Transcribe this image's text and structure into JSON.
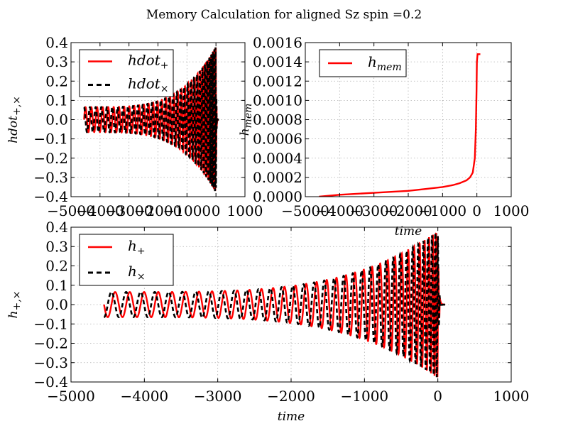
{
  "figure": {
    "suptitle": "Memory Calculation for aligned Sz spin =0.2"
  },
  "chart_data": [
    {
      "id": "hdot",
      "type": "line",
      "xlabel": "",
      "ylabel_base": "hdot",
      "ylabel_sub": "+,×",
      "xlim": [
        -5000,
        1000
      ],
      "ylim": [
        -0.4,
        0.4
      ],
      "xticks": [
        -5000,
        -4000,
        -3000,
        -2000,
        -1000,
        0,
        1000
      ],
      "xtick_labels": [
        "−5000",
        "−4000",
        "−3000",
        "−2000",
        "−1000",
        "0",
        "1000"
      ],
      "yticks": [
        -0.4,
        -0.3,
        -0.2,
        -0.1,
        0.0,
        0.1,
        0.2,
        0.3,
        0.4
      ],
      "ytick_labels": [
        "−0.4",
        "−0.3",
        "−0.2",
        "−0.1",
        "0.0",
        "0.1",
        "0.2",
        "0.3",
        "0.4"
      ],
      "grid": true,
      "legend_position": "upper-left",
      "series": [
        {
          "name_base": "hdot",
          "name_sub": "+",
          "color": "#ff0000",
          "style": "solid",
          "t_start": -4550,
          "t_end": 100,
          "amp_start": 0.065,
          "amp_peak": 0.38,
          "cycles": 36,
          "phase": 0.0
        },
        {
          "name_base": "hdot",
          "name_sub": "×",
          "color": "#000000",
          "style": "dashed",
          "t_start": -4550,
          "t_end": 100,
          "amp_start": 0.065,
          "amp_peak": 0.38,
          "cycles": 36,
          "phase": 1.5708
        }
      ]
    },
    {
      "id": "hmem",
      "type": "line",
      "xlabel": "time",
      "ylabel_base": "h",
      "ylabel_sub": "mem",
      "xlim": [
        -5000,
        1000
      ],
      "ylim": [
        0.0,
        0.0016
      ],
      "xticks": [
        -5000,
        -4000,
        -3000,
        -2000,
        -1000,
        0,
        1000
      ],
      "xtick_labels": [
        "−5000",
        "−4000",
        "−3000",
        "−2000",
        "−1000",
        "0",
        "1000"
      ],
      "yticks": [
        0.0,
        0.0002,
        0.0004,
        0.0006,
        0.0008,
        0.001,
        0.0012,
        0.0014,
        0.0016
      ],
      "ytick_labels": [
        "0.0000",
        "0.0002",
        "0.0004",
        "0.0006",
        "0.0008",
        "0.0010",
        "0.0012",
        "0.0014",
        "0.0016"
      ],
      "grid": true,
      "legend_position": "upper-left",
      "series": [
        {
          "name_base": "h",
          "name_sub": "mem",
          "color": "#ff0000",
          "style": "solid",
          "x": [
            -4600,
            -4000,
            -3500,
            -3000,
            -2500,
            -2000,
            -1500,
            -1000,
            -700,
            -500,
            -300,
            -200,
            -120,
            -60,
            -30,
            -10,
            0,
            20,
            60,
            100
          ],
          "y": [
            0.0,
            2e-05,
            3e-05,
            4e-05,
            5e-05,
            6e-05,
            8e-05,
            0.0001,
            0.00012,
            0.00014,
            0.00017,
            0.0002,
            0.00025,
            0.0004,
            0.0007,
            0.0011,
            0.0014,
            0.00148,
            0.00148,
            0.00148
          ]
        }
      ]
    },
    {
      "id": "h",
      "type": "line",
      "xlabel": "time",
      "ylabel_base": "h",
      "ylabel_sub": "+,×",
      "xlim": [
        -5000,
        1000
      ],
      "ylim": [
        -0.4,
        0.4
      ],
      "xticks": [
        -5000,
        -4000,
        -3000,
        -2000,
        -1000,
        0,
        1000
      ],
      "xtick_labels": [
        "−5000",
        "−4000",
        "−3000",
        "−2000",
        "−1000",
        "0",
        "1000"
      ],
      "yticks": [
        -0.4,
        -0.3,
        -0.2,
        -0.1,
        0.0,
        0.1,
        0.2,
        0.3,
        0.4
      ],
      "ytick_labels": [
        "−0.4",
        "−0.3",
        "−0.2",
        "−0.1",
        "0.0",
        "0.1",
        "0.2",
        "0.3",
        "0.4"
      ],
      "grid": true,
      "legend_position": "upper-left",
      "series": [
        {
          "name_base": "h",
          "name_sub": "+",
          "color": "#ff0000",
          "style": "solid",
          "t_start": -4550,
          "t_end": 100,
          "amp_start": 0.065,
          "amp_peak": 0.38,
          "cycles": 36,
          "phase": 3.1416
        },
        {
          "name_base": "h",
          "name_sub": "×",
          "color": "#000000",
          "style": "dashed",
          "t_start": -4550,
          "t_end": 100,
          "amp_start": 0.065,
          "amp_peak": 0.38,
          "cycles": 36,
          "phase": 4.7124
        }
      ]
    }
  ]
}
